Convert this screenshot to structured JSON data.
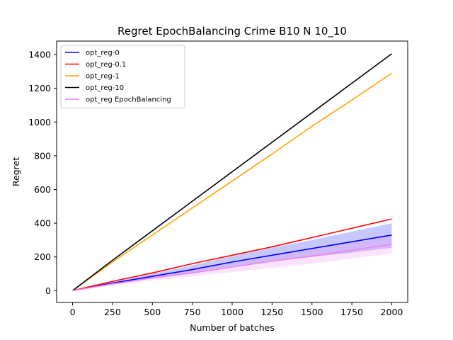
{
  "chart_data": {
    "type": "line",
    "title": "Regret EpochBalancing Crime B10 N 10_10",
    "xlabel": "Number of batches",
    "ylabel": "Regret",
    "xlim": [
      -100,
      2100
    ],
    "ylim": [
      -70,
      1480
    ],
    "xticks": [
      0,
      250,
      500,
      750,
      1000,
      1250,
      1500,
      1750,
      2000
    ],
    "yticks": [
      0,
      200,
      400,
      600,
      800,
      1000,
      1200,
      1400
    ],
    "grid": false,
    "legend_position": "top-left",
    "series": [
      {
        "name": "opt_reg-0",
        "color": "#0000ff",
        "x": [
          0,
          250,
          500,
          750,
          1000,
          1250,
          1500,
          1750,
          2000
        ],
        "y": [
          0,
          45,
          85,
          125,
          170,
          210,
          250,
          290,
          330
        ],
        "band_lower": [
          0,
          40,
          75,
          108,
          145,
          175,
          200,
          225,
          255
        ],
        "band_upper": [
          0,
          50,
          100,
          150,
          205,
          255,
          300,
          350,
          400
        ],
        "band_color": "#0000ff"
      },
      {
        "name": "opt_reg-0.1",
        "color": "#ff0000",
        "x": [
          0,
          250,
          500,
          750,
          1000,
          1250,
          1500,
          1750,
          2000
        ],
        "y": [
          0,
          55,
          105,
          160,
          210,
          260,
          315,
          370,
          425
        ]
      },
      {
        "name": "opt_reg-1",
        "color": "#ffa500",
        "x": [
          0,
          250,
          500,
          750,
          1000,
          1250,
          1500,
          1750,
          2000
        ],
        "y": [
          0,
          170,
          330,
          490,
          650,
          810,
          975,
          1130,
          1290
        ]
      },
      {
        "name": "opt_reg-10",
        "color": "#000000",
        "x": [
          0,
          250,
          500,
          750,
          1000,
          1250,
          1500,
          1750,
          2000
        ],
        "y": [
          0,
          180,
          355,
          530,
          705,
          880,
          1055,
          1230,
          1405
        ]
      },
      {
        "name": "opt_reg EpochBalancing",
        "color": "#ee82ee",
        "x": [
          0,
          250,
          500,
          750,
          1000,
          1250,
          1500,
          1750,
          2000
        ],
        "y": [
          0,
          40,
          75,
          105,
          140,
          175,
          205,
          240,
          275
        ],
        "band_lower": [
          0,
          32,
          60,
          85,
          110,
          135,
          160,
          190,
          220
        ],
        "band_upper": [
          0,
          48,
          90,
          130,
          170,
          210,
          250,
          290,
          330
        ],
        "band_color": "#ee82ee"
      }
    ]
  }
}
